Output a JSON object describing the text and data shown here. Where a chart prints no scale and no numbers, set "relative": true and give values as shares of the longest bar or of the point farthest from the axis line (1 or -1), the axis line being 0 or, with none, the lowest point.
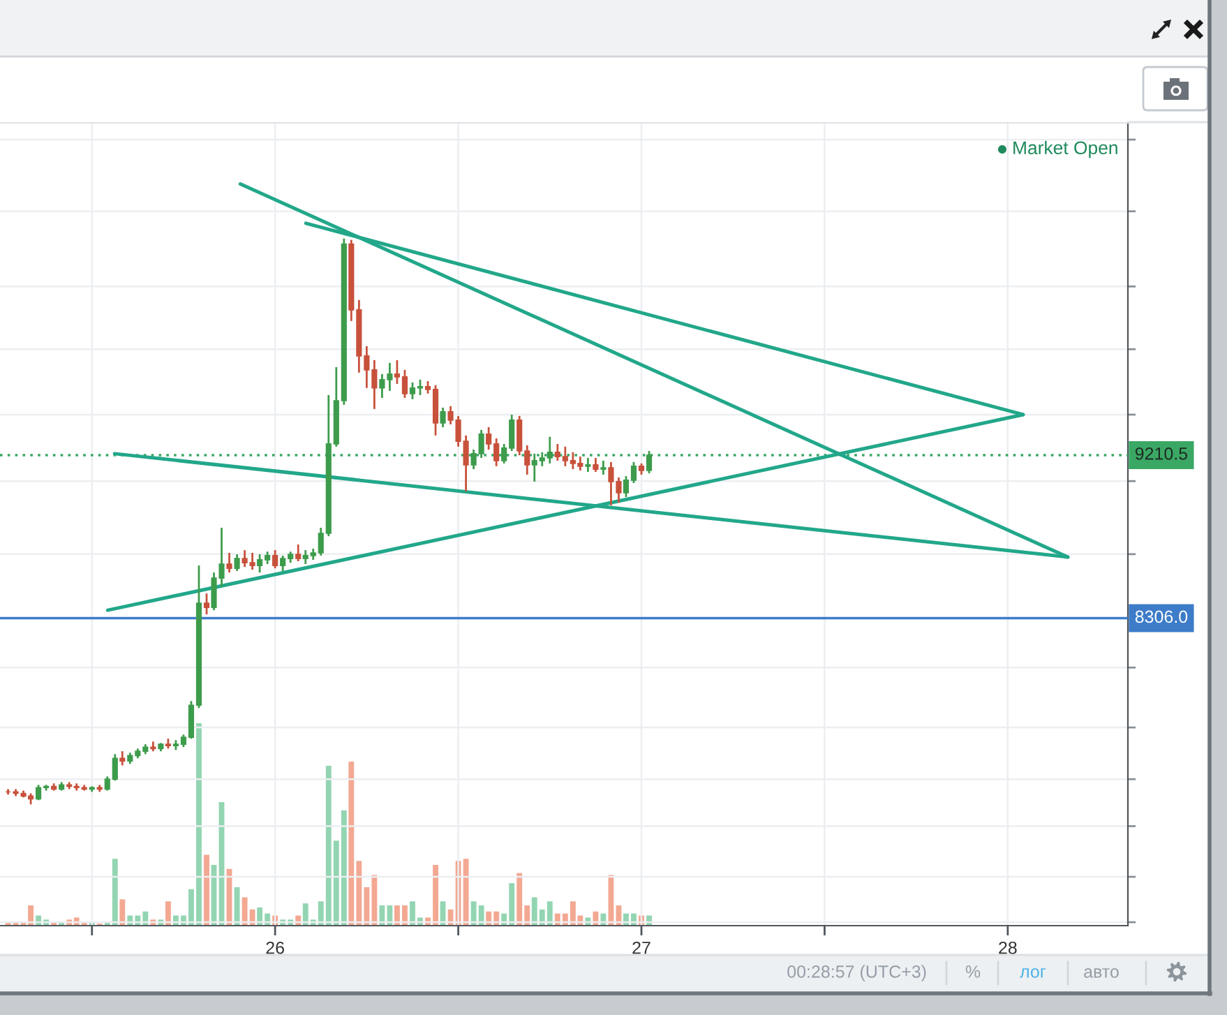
{
  "chart_data": [
    {
      "type": "candlestick",
      "log": true,
      "grid": true,
      "tick_labels": "x",
      "x": [
        25.271,
        25.292,
        25.313,
        25.333,
        25.354,
        25.375,
        25.396,
        25.417,
        25.438,
        25.458,
        25.479,
        25.5,
        25.521,
        25.542,
        25.563,
        25.583,
        25.604,
        25.625,
        25.646,
        25.667,
        25.688,
        25.708,
        25.729,
        25.75,
        25.771,
        25.792,
        25.813,
        25.833,
        25.854,
        25.875,
        25.896,
        25.917,
        25.938,
        25.958,
        25.979,
        26.0,
        26.021,
        26.042,
        26.063,
        26.083,
        26.104,
        26.125,
        26.146,
        26.167,
        26.188,
        26.208,
        26.229,
        26.25,
        26.271,
        26.292,
        26.313,
        26.333,
        26.354,
        26.375,
        26.396,
        26.417,
        26.438,
        26.458,
        26.479,
        26.5,
        26.521,
        26.542,
        26.563,
        26.583,
        26.604,
        26.625,
        26.646,
        26.667,
        26.688,
        26.708,
        26.729,
        26.75,
        26.771,
        26.792,
        26.813,
        26.833,
        26.854,
        26.875,
        26.896,
        26.917,
        26.938,
        26.958,
        26.979,
        27.0,
        27.021
      ],
      "ohlc": [
        [
          7440,
          7453,
          7427,
          7440
        ],
        [
          7440,
          7453,
          7420,
          7433
        ],
        [
          7433,
          7446,
          7414,
          7420
        ],
        [
          7420,
          7433,
          7381,
          7407
        ],
        [
          7407,
          7473,
          7401,
          7460
        ],
        [
          7460,
          7473,
          7446,
          7466
        ],
        [
          7466,
          7480,
          7446,
          7453
        ],
        [
          7453,
          7486,
          7446,
          7473
        ],
        [
          7473,
          7486,
          7453,
          7466
        ],
        [
          7466,
          7480,
          7446,
          7460
        ],
        [
          7460,
          7473,
          7446,
          7453
        ],
        [
          7453,
          7466,
          7440,
          7460
        ],
        [
          7460,
          7473,
          7440,
          7453
        ],
        [
          7453,
          7513,
          7446,
          7500
        ],
        [
          7500,
          7620,
          7493,
          7600
        ],
        [
          7600,
          7634,
          7566,
          7587
        ],
        [
          7587,
          7627,
          7573,
          7613
        ],
        [
          7613,
          7647,
          7600,
          7634
        ],
        [
          7634,
          7668,
          7620,
          7654
        ],
        [
          7654,
          7681,
          7634,
          7647
        ],
        [
          7647,
          7674,
          7634,
          7668
        ],
        [
          7668,
          7695,
          7647,
          7661
        ],
        [
          7661,
          7688,
          7640,
          7668
        ],
        [
          7668,
          7715,
          7654,
          7702
        ],
        [
          7702,
          7881,
          7695,
          7860
        ],
        [
          7860,
          8588,
          7846,
          8385
        ],
        [
          8385,
          8437,
          8326,
          8363
        ],
        [
          8363,
          8550,
          8348,
          8520
        ],
        [
          8520,
          8796,
          8475,
          8596
        ],
        [
          8596,
          8657,
          8550,
          8573
        ],
        [
          8573,
          8649,
          8558,
          8626
        ],
        [
          8626,
          8672,
          8580,
          8603
        ],
        [
          8603,
          8657,
          8565,
          8588
        ],
        [
          8588,
          8649,
          8550,
          8619
        ],
        [
          8619,
          8664,
          8596,
          8642
        ],
        [
          8642,
          8672,
          8573,
          8588
        ],
        [
          8588,
          8642,
          8558,
          8626
        ],
        [
          8626,
          8664,
          8603,
          8649
        ],
        [
          8649,
          8703,
          8611,
          8626
        ],
        [
          8626,
          8672,
          8596,
          8642
        ],
        [
          8642,
          8680,
          8619,
          8657
        ],
        [
          8657,
          8796,
          8642,
          8765
        ],
        [
          8765,
          9568,
          8749,
          9276
        ],
        [
          9276,
          9739,
          9260,
          9534
        ],
        [
          9534,
          10566,
          9509,
          10529
        ],
        [
          10529,
          10557,
          10028,
          10099
        ],
        [
          10099,
          10162,
          9705,
          9808
        ],
        [
          9808,
          9869,
          9611,
          9722
        ],
        [
          9722,
          9782,
          9484,
          9611
        ],
        [
          9611,
          9696,
          9551,
          9662
        ],
        [
          9662,
          9765,
          9594,
          9696
        ],
        [
          9696,
          9782,
          9636,
          9679
        ],
        [
          9679,
          9722,
          9551,
          9577
        ],
        [
          9577,
          9645,
          9543,
          9611
        ],
        [
          9611,
          9662,
          9568,
          9619
        ],
        [
          9619,
          9653,
          9577,
          9602
        ],
        [
          9602,
          9628,
          9326,
          9400
        ],
        [
          9400,
          9492,
          9375,
          9467
        ],
        [
          9467,
          9501,
          9392,
          9417
        ],
        [
          9417,
          9442,
          9260,
          9292
        ],
        [
          9292,
          9326,
          9001,
          9154
        ],
        [
          9154,
          9243,
          9129,
          9219
        ],
        [
          9219,
          9359,
          9194,
          9334
        ],
        [
          9334,
          9375,
          9243,
          9276
        ],
        [
          9276,
          9309,
          9146,
          9178
        ],
        [
          9178,
          9276,
          9162,
          9252
        ],
        [
          9252,
          9450,
          9235,
          9417
        ],
        [
          9417,
          9442,
          9210,
          9235
        ],
        [
          9235,
          9268,
          9097,
          9154
        ],
        [
          9154,
          9219,
          9057,
          9178
        ],
        [
          9178,
          9227,
          9146,
          9194
        ],
        [
          9194,
          9318,
          9162,
          9227
        ],
        [
          9227,
          9276,
          9178,
          9202
        ],
        [
          9202,
          9260,
          9146,
          9178
        ],
        [
          9178,
          9227,
          9129,
          9162
        ],
        [
          9162,
          9202,
          9121,
          9146
        ],
        [
          9146,
          9194,
          9113,
          9154
        ],
        [
          9154,
          9194,
          9113,
          9129
        ],
        [
          9129,
          9178,
          9097,
          9137
        ],
        [
          9137,
          9170,
          8922,
          9057
        ],
        [
          9057,
          9081,
          8937,
          8993
        ],
        [
          8993,
          9089,
          8969,
          9065
        ],
        [
          9065,
          9170,
          9049,
          9146
        ],
        [
          9146,
          9162,
          9097,
          9121
        ],
        [
          9121,
          9235,
          9105,
          9210.5
        ]
      ],
      "colors": [
        "#c8513b",
        "#c8513b",
        "#c8513b",
        "#c8513b",
        "#3d9c4c",
        "#3d9c4c",
        "#c8513b",
        "#3d9c4c",
        "#c8513b",
        "#c8513b",
        "#c8513b",
        "#3d9c4c",
        "#c8513b",
        "#3d9c4c",
        "#3d9c4c",
        "#c8513b",
        "#3d9c4c",
        "#3d9c4c",
        "#3d9c4c",
        "#c8513b",
        "#3d9c4c",
        "#c8513b",
        "#3d9c4c",
        "#3d9c4c",
        "#3d9c4c",
        "#3d9c4c",
        "#c8513b",
        "#3d9c4c",
        "#3d9c4c",
        "#c8513b",
        "#3d9c4c",
        "#c8513b",
        "#c8513b",
        "#3d9c4c",
        "#3d9c4c",
        "#c8513b",
        "#3d9c4c",
        "#3d9c4c",
        "#c8513b",
        "#3d9c4c",
        "#3d9c4c",
        "#3d9c4c",
        "#3d9c4c",
        "#3d9c4c",
        "#3d9c4c",
        "#c8513b",
        "#c8513b",
        "#c8513b",
        "#c8513b",
        "#3d9c4c",
        "#3d9c4c",
        "#c8513b",
        "#c8513b",
        "#3d9c4c",
        "#3d9c4c",
        "#c8513b",
        "#c8513b",
        "#3d9c4c",
        "#c8513b",
        "#c8513b",
        "#c8513b",
        "#3d9c4c",
        "#3d9c4c",
        "#c8513b",
        "#c8513b",
        "#3d9c4c",
        "#3d9c4c",
        "#c8513b",
        "#c8513b",
        "#3d9c4c",
        "#3d9c4c",
        "#3d9c4c",
        "#c8513b",
        "#c8513b",
        "#c8513b",
        "#c8513b",
        "#3d9c4c",
        "#c8513b",
        "#3d9c4c",
        "#c8513b",
        "#c8513b",
        "#3d9c4c",
        "#3d9c4c",
        "#c8513b",
        "#3d9c4c"
      ],
      "series": [
        {
          "type": "line",
          "color": "#22a78a",
          "x": [
            25.905,
            28.164
          ],
          "values": [
            10938,
            8634
          ]
        },
        {
          "type": "line",
          "color": "#22a78a",
          "x": [
            26.084,
            28.042
          ],
          "values": [
            10669,
            9450
          ]
        },
        {
          "type": "line",
          "color": "#22a78a",
          "x": [
            25.562,
            28.164
          ],
          "values": [
            9219,
            8634
          ]
        },
        {
          "type": "line",
          "color": "#22a78a",
          "x": [
            25.543,
            28.042
          ],
          "values": [
            8348,
            9450
          ]
        }
      ],
      "ref_lines": [
        {
          "axis": "y",
          "value": 9210.5,
          "label": "9210.5",
          "color": "#3aa864",
          "line_style": "dotted"
        },
        {
          "axis": "y",
          "value": 8306.0,
          "label": "8306.0",
          "color": "#3d7cc9"
        }
      ],
      "xlim": [
        25.249,
        28.328
      ],
      "ylim": [
        6835,
        11370
      ],
      "xticks": [
        {
          "value": 25.5,
          "label": null
        },
        26,
        {
          "value": 26.5,
          "label": null
        },
        27,
        {
          "value": 27.5,
          "label": null
        },
        28
      ],
      "yticks": [
        {
          "value": 11250,
          "label": null
        },
        {
          "value": 10750,
          "label": null
        },
        {
          "value": 10250,
          "label": null
        },
        {
          "value": 9850,
          "label": null
        },
        {
          "value": 9450,
          "label": null
        },
        {
          "value": 9060,
          "label": null
        },
        {
          "value": 8650,
          "label": null
        },
        {
          "value": 8050,
          "label": null
        },
        {
          "value": 7750,
          "label": null
        },
        {
          "value": 7500,
          "label": null
        },
        {
          "value": 7280,
          "label": null
        },
        {
          "value": 7050,
          "label": null
        },
        {
          "value": 6850,
          "label": null
        }
      ],
      "annotations": [
        "Market Open",
        "00:28:57 (UTC+3)",
        "%",
        "лог",
        "авто"
      ]
    },
    {
      "type": "bar",
      "relative": true,
      "tick_labels": false,
      "xlim": [
        25.249,
        28.328
      ],
      "x": [
        25.271,
        25.292,
        25.313,
        25.333,
        25.354,
        25.375,
        25.396,
        25.417,
        25.438,
        25.458,
        25.479,
        25.5,
        25.521,
        25.542,
        25.563,
        25.583,
        25.604,
        25.625,
        25.646,
        25.667,
        25.688,
        25.708,
        25.729,
        25.75,
        25.771,
        25.792,
        25.813,
        25.833,
        25.854,
        25.875,
        25.896,
        25.917,
        25.938,
        25.958,
        25.979,
        26.0,
        26.021,
        26.042,
        26.063,
        26.083,
        26.104,
        26.125,
        26.146,
        26.167,
        26.188,
        26.208,
        26.229,
        26.25,
        26.271,
        26.292,
        26.313,
        26.333,
        26.354,
        26.375,
        26.396,
        26.417,
        26.438,
        26.458,
        26.479,
        26.5,
        26.521,
        26.542,
        26.563,
        26.583,
        26.604,
        26.625,
        26.646,
        26.667,
        26.688,
        26.708,
        26.729,
        26.75,
        26.771,
        26.792,
        26.813,
        26.833,
        26.854,
        26.875,
        26.896,
        26.917,
        26.938,
        26.958,
        26.979,
        27.0,
        27.021
      ],
      "values": [
        0.02,
        0.02,
        0.02,
        0.1,
        0.05,
        0.03,
        0.02,
        0.02,
        0.03,
        0.04,
        0.02,
        0.02,
        0.01,
        0.02,
        0.33,
        0.13,
        0.05,
        0.05,
        0.07,
        0.03,
        0.03,
        0.12,
        0.05,
        0.05,
        0.18,
        1,
        0.35,
        0.3,
        0.61,
        0.28,
        0.19,
        0.14,
        0.08,
        0.09,
        0.06,
        0.05,
        0.03,
        0.03,
        0.05,
        0.11,
        0.03,
        0.12,
        0.79,
        0.42,
        0.57,
        0.81,
        0.32,
        0.19,
        0.25,
        0.1,
        0.1,
        0.1,
        0.1,
        0.12,
        0.04,
        0.04,
        0.3,
        0.12,
        0.08,
        0.32,
        0.33,
        0.12,
        0.1,
        0.07,
        0.07,
        0.06,
        0.21,
        0.26,
        0.1,
        0.14,
        0.08,
        0.12,
        0.06,
        0.06,
        0.12,
        0.05,
        0.04,
        0.07,
        0.06,
        0.25,
        0.1,
        0.06,
        0.06,
        0.05,
        0.05
      ],
      "colors": [
        "#f3a892",
        "#f3a892",
        "#f3a892",
        "#f3a892",
        "#93d5b2",
        "#93d5b2",
        "#f3a892",
        "#93d5b2",
        "#f3a892",
        "#f3a892",
        "#f3a892",
        "#93d5b2",
        "#f3a892",
        "#93d5b2",
        "#93d5b2",
        "#f3a892",
        "#93d5b2",
        "#93d5b2",
        "#93d5b2",
        "#f3a892",
        "#93d5b2",
        "#f3a892",
        "#93d5b2",
        "#93d5b2",
        "#93d5b2",
        "#93d5b2",
        "#f3a892",
        "#93d5b2",
        "#93d5b2",
        "#f3a892",
        "#93d5b2",
        "#f3a892",
        "#f3a892",
        "#93d5b2",
        "#93d5b2",
        "#f3a892",
        "#93d5b2",
        "#93d5b2",
        "#f3a892",
        "#93d5b2",
        "#93d5b2",
        "#93d5b2",
        "#93d5b2",
        "#93d5b2",
        "#93d5b2",
        "#f3a892",
        "#f3a892",
        "#f3a892",
        "#f3a892",
        "#93d5b2",
        "#93d5b2",
        "#f3a892",
        "#f3a892",
        "#93d5b2",
        "#93d5b2",
        "#f3a892",
        "#f3a892",
        "#93d5b2",
        "#f3a892",
        "#f3a892",
        "#f3a892",
        "#93d5b2",
        "#93d5b2",
        "#f3a892",
        "#f3a892",
        "#93d5b2",
        "#93d5b2",
        "#f3a892",
        "#f3a892",
        "#93d5b2",
        "#93d5b2",
        "#93d5b2",
        "#f3a892",
        "#f3a892",
        "#f3a892",
        "#f3a892",
        "#93d5b2",
        "#f3a892",
        "#93d5b2",
        "#f3a892",
        "#f3a892",
        "#93d5b2",
        "#93d5b2",
        "#f3a892",
        "#93d5b2"
      ]
    }
  ]
}
